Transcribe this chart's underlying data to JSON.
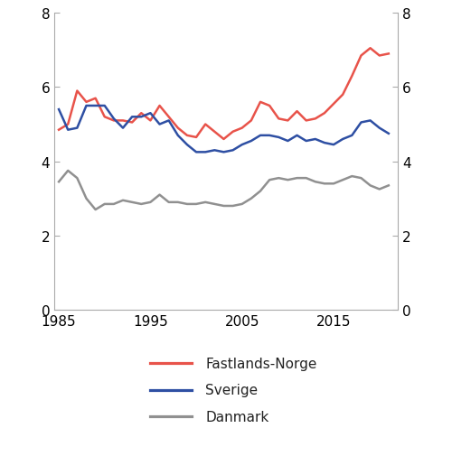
{
  "title": "",
  "ylim": [
    0,
    8
  ],
  "yticks": [
    0,
    2,
    4,
    6,
    8
  ],
  "xlim": [
    1984.5,
    2022
  ],
  "xticks": [
    1985,
    1995,
    2005,
    2015
  ],
  "background_color": "#ffffff",
  "line_colors": {
    "norge": "#e8534a",
    "sverige": "#2e4fa3",
    "danmark": "#909090"
  },
  "legend_labels": [
    "Fastlands-Norge",
    "Sverige",
    "Danmark"
  ],
  "years": [
    1985,
    1986,
    1987,
    1988,
    1989,
    1990,
    1991,
    1992,
    1993,
    1994,
    1995,
    1996,
    1997,
    1998,
    1999,
    2000,
    2001,
    2002,
    2003,
    2004,
    2005,
    2006,
    2007,
    2008,
    2009,
    2010,
    2011,
    2012,
    2013,
    2014,
    2015,
    2016,
    2017,
    2018,
    2019,
    2020,
    2021
  ],
  "norge": [
    4.85,
    5.0,
    5.9,
    5.6,
    5.7,
    5.2,
    5.1,
    5.1,
    5.05,
    5.3,
    5.1,
    5.5,
    5.2,
    4.9,
    4.7,
    4.65,
    5.0,
    4.8,
    4.6,
    4.8,
    4.9,
    5.1,
    5.6,
    5.5,
    5.15,
    5.1,
    5.35,
    5.1,
    5.15,
    5.3,
    5.55,
    5.8,
    6.3,
    6.85,
    7.05,
    6.85,
    6.9
  ],
  "sverige": [
    5.4,
    4.85,
    4.9,
    5.5,
    5.5,
    5.5,
    5.15,
    4.9,
    5.2,
    5.2,
    5.3,
    5.0,
    5.1,
    4.7,
    4.45,
    4.25,
    4.25,
    4.3,
    4.25,
    4.3,
    4.45,
    4.55,
    4.7,
    4.7,
    4.65,
    4.55,
    4.7,
    4.55,
    4.6,
    4.5,
    4.45,
    4.6,
    4.7,
    5.05,
    5.1,
    4.9,
    4.75
  ],
  "danmark": [
    3.45,
    3.75,
    3.55,
    3.0,
    2.7,
    2.85,
    2.85,
    2.95,
    2.9,
    2.85,
    2.9,
    3.1,
    2.9,
    2.9,
    2.85,
    2.85,
    2.9,
    2.85,
    2.8,
    2.8,
    2.85,
    3.0,
    3.2,
    3.5,
    3.55,
    3.5,
    3.55,
    3.55,
    3.45,
    3.4,
    3.4,
    3.5,
    3.6,
    3.55,
    3.35,
    3.25,
    3.35
  ],
  "line_width": 1.8,
  "font_size_ticks": 11,
  "font_size_legend": 11,
  "spine_color": "#aaaaaa",
  "tick_color": "#aaaaaa"
}
